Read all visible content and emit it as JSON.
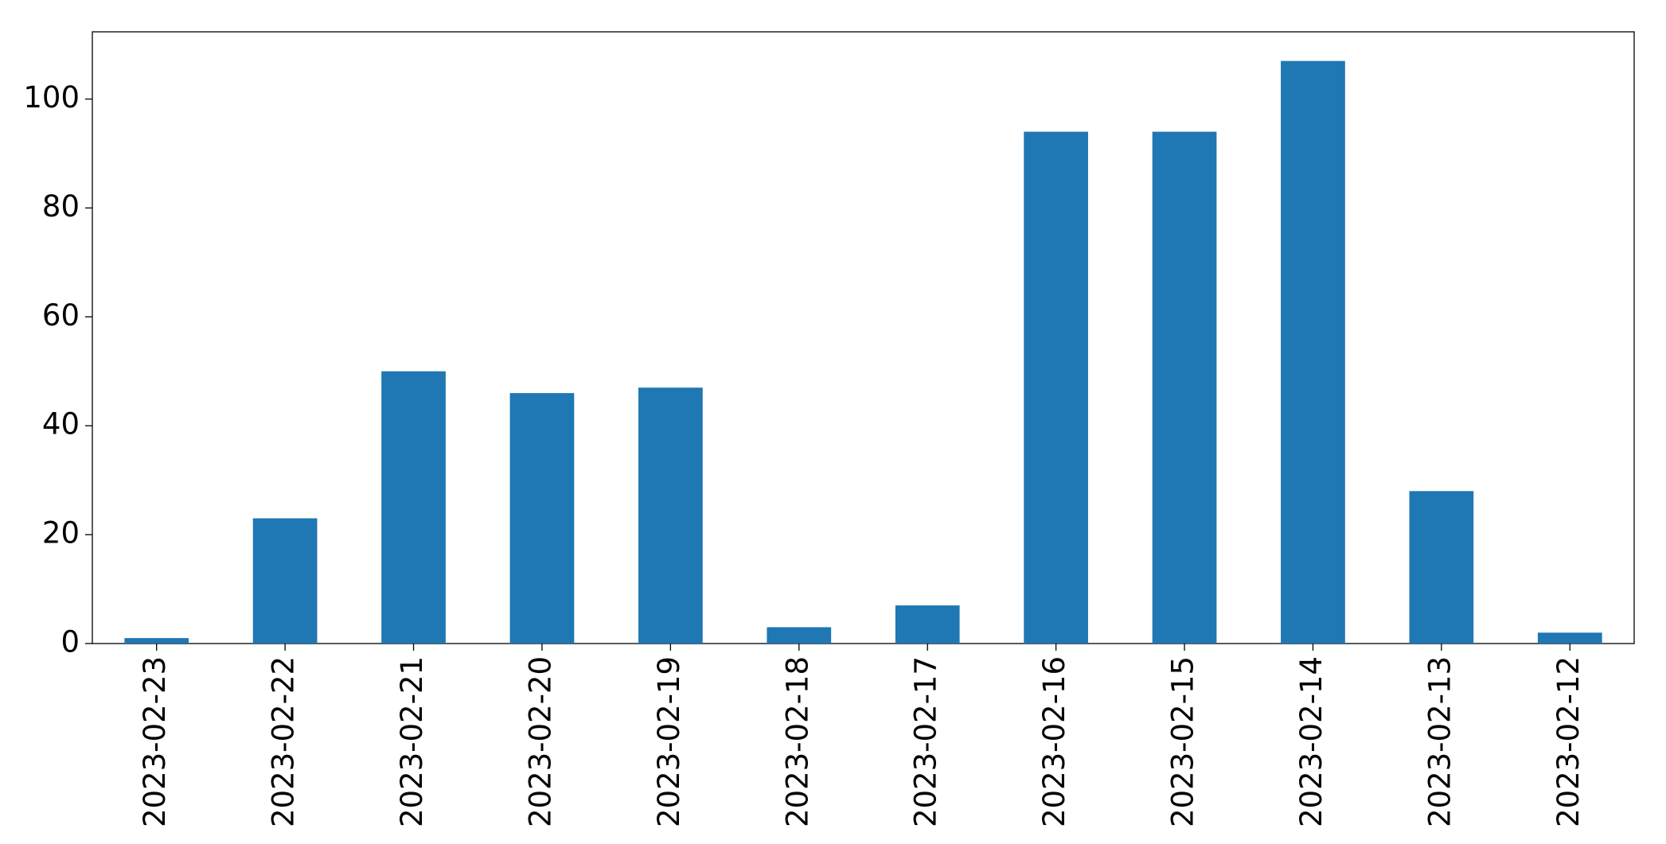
{
  "chart_data": {
    "type": "bar",
    "categories": [
      "2023-02-23",
      "2023-02-22",
      "2023-02-21",
      "2023-02-20",
      "2023-02-19",
      "2023-02-18",
      "2023-02-17",
      "2023-02-16",
      "2023-02-15",
      "2023-02-14",
      "2023-02-13",
      "2023-02-12"
    ],
    "values": [
      1,
      23,
      50,
      46,
      47,
      3,
      7,
      94,
      94,
      107,
      28,
      2
    ],
    "color": "#1f77b4",
    "ylim": [
      0,
      112.35
    ],
    "yticks": [
      0,
      20,
      40,
      60,
      80,
      100
    ],
    "grid": false
  }
}
